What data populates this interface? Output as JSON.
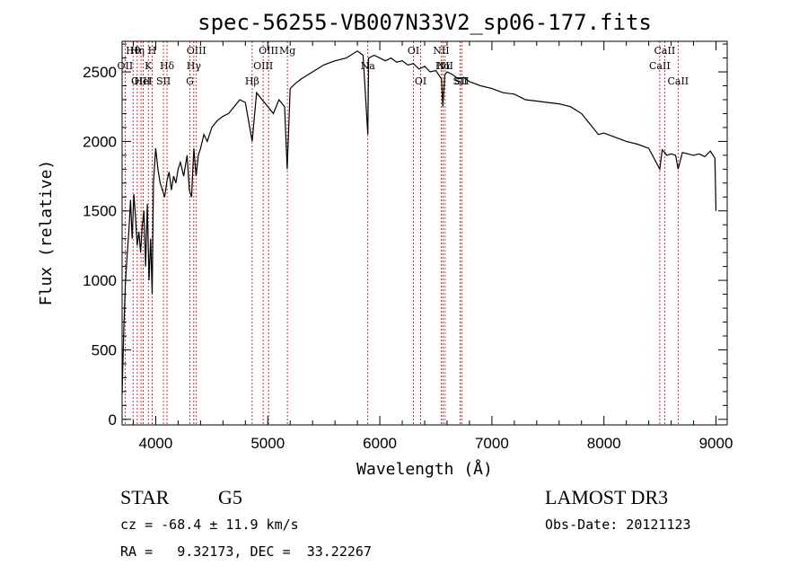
{
  "chart_data": {
    "type": "line",
    "title": "spec-56255-VB007N33V2_sp06-177.fits",
    "xlabel": "Wavelength (Å)",
    "ylabel": "Flux (relative)",
    "xlim": [
      3700,
      9100
    ],
    "ylim": [
      -40,
      2720
    ],
    "x_ticks": [
      {
        "value": 4000,
        "label": "4000"
      },
      {
        "value": 5000,
        "label": "5000"
      },
      {
        "value": 6000,
        "label": "6000"
      },
      {
        "value": 7000,
        "label": "7000"
      },
      {
        "value": 8000,
        "label": "8000"
      },
      {
        "value": 9000,
        "label": "9000"
      }
    ],
    "y_ticks": [
      {
        "value": 0,
        "label": "0"
      },
      {
        "value": 500,
        "label": "500"
      },
      {
        "value": 1000,
        "label": "1000"
      },
      {
        "value": 1500,
        "label": "1500"
      },
      {
        "value": 2000,
        "label": "2000"
      },
      {
        "value": 2500,
        "label": "2500"
      }
    ],
    "series": [
      {
        "name": "flux",
        "x": [
          3700,
          3715,
          3730,
          3745,
          3760,
          3775,
          3790,
          3805,
          3820,
          3835,
          3850,
          3865,
          3880,
          3895,
          3910,
          3925,
          3940,
          3955,
          3968,
          3980,
          4000,
          4020,
          4040,
          4060,
          4080,
          4101,
          4120,
          4140,
          4160,
          4180,
          4200,
          4220,
          4250,
          4280,
          4300,
          4320,
          4340,
          4360,
          4380,
          4400,
          4430,
          4460,
          4500,
          4550,
          4600,
          4650,
          4700,
          4750,
          4800,
          4861,
          4900,
          4950,
          5000,
          5050,
          5100,
          5150,
          5173,
          5200,
          5250,
          5300,
          5400,
          5500,
          5600,
          5700,
          5800,
          5850,
          5893,
          5900,
          5950,
          6000,
          6050,
          6100,
          6150,
          6200,
          6250,
          6300,
          6350,
          6400,
          6450,
          6500,
          6550,
          6563,
          6580,
          6600,
          6650,
          6700,
          6750,
          6800,
          6900,
          7000,
          7100,
          7200,
          7300,
          7400,
          7500,
          7600,
          7700,
          7800,
          7900,
          7950,
          8000,
          8100,
          8200,
          8300,
          8400,
          8498,
          8520,
          8542,
          8560,
          8600,
          8640,
          8662,
          8700,
          8750,
          8800,
          8850,
          8900,
          8950,
          8990,
          9000
        ],
        "y": [
          180,
          650,
          980,
          1180,
          1350,
          1580,
          1300,
          1620,
          1450,
          1250,
          1350,
          1200,
          1400,
          1500,
          1100,
          1550,
          1000,
          1300,
          900,
          1700,
          1950,
          1800,
          1700,
          1650,
          1600,
          1720,
          1780,
          1650,
          1750,
          1700,
          1800,
          1850,
          1750,
          1900,
          1650,
          1600,
          1950,
          1750,
          1900,
          1950,
          2050,
          2000,
          2100,
          2150,
          2180,
          2200,
          2250,
          2300,
          2280,
          2000,
          2350,
          2300,
          2250,
          2200,
          2300,
          2250,
          1800,
          2380,
          2420,
          2450,
          2500,
          2550,
          2580,
          2600,
          2650,
          2620,
          2050,
          2600,
          2620,
          2600,
          2580,
          2600,
          2570,
          2580,
          2550,
          2560,
          2520,
          2540,
          2500,
          2510,
          2450,
          2250,
          2480,
          2500,
          2480,
          2450,
          2460,
          2430,
          2400,
          2380,
          2350,
          2340,
          2300,
          2290,
          2280,
          2270,
          2250,
          2200,
          2100,
          2050,
          2060,
          2030,
          2000,
          1980,
          1950,
          1800,
          1940,
          1920,
          1900,
          1910,
          1900,
          1800,
          1920,
          1910,
          1900,
          1910,
          1890,
          1930,
          1880,
          1500
        ]
      }
    ],
    "lines": [
      {
        "name": "Hθ",
        "wavelength": 3798
      },
      {
        "name": "OII",
        "wavelength": 3727
      },
      {
        "name": "OIII",
        "wavelength": 3869
      },
      {
        "name": "Hη",
        "wavelength": 3835
      },
      {
        "name": "K",
        "wavelength": 3934
      },
      {
        "name": "HeI",
        "wavelength": 3889
      },
      {
        "name": "H",
        "wavelength": 3968
      },
      {
        "name": "Hδ",
        "wavelength": 4101
      },
      {
        "name": "SII",
        "wavelength": 4069
      },
      {
        "name": "OIII",
        "wavelength": 4363
      },
      {
        "name": "Hγ",
        "wavelength": 4340
      },
      {
        "name": "G",
        "wavelength": 4305
      },
      {
        "name": "OIII",
        "wavelength": 5007
      },
      {
        "name": "OIII",
        "wavelength": 4959
      },
      {
        "name": "Hβ",
        "wavelength": 4861
      },
      {
        "name": "Mg",
        "wavelength": 5175
      },
      {
        "name": "Na",
        "wavelength": 5893
      },
      {
        "name": "OI",
        "wavelength": 6364
      },
      {
        "name": "OI",
        "wavelength": 6300
      },
      {
        "name": "Hα",
        "wavelength": 6563
      },
      {
        "name": "SII",
        "wavelength": 6717
      },
      {
        "name": "NII",
        "wavelength": 6548
      },
      {
        "name": "NII",
        "wavelength": 6583
      },
      {
        "name": "SII",
        "wavelength": 6731
      },
      {
        "name": "CaII",
        "wavelength": 8542
      },
      {
        "name": "CaII",
        "wavelength": 8498
      },
      {
        "name": "CaII",
        "wavelength": 8662
      }
    ]
  },
  "info": {
    "object_class": "STAR",
    "subclass": "G5",
    "survey": "LAMOST DR3",
    "redshift": "cz = -68.4 ± 11.9 km/s",
    "obs_date": "Obs-Date: 20121123",
    "coords": "RA =   9.32173, DEC =  33.22267"
  },
  "colors": {
    "line_marker": "#c00000",
    "spectrum": "#000000"
  }
}
